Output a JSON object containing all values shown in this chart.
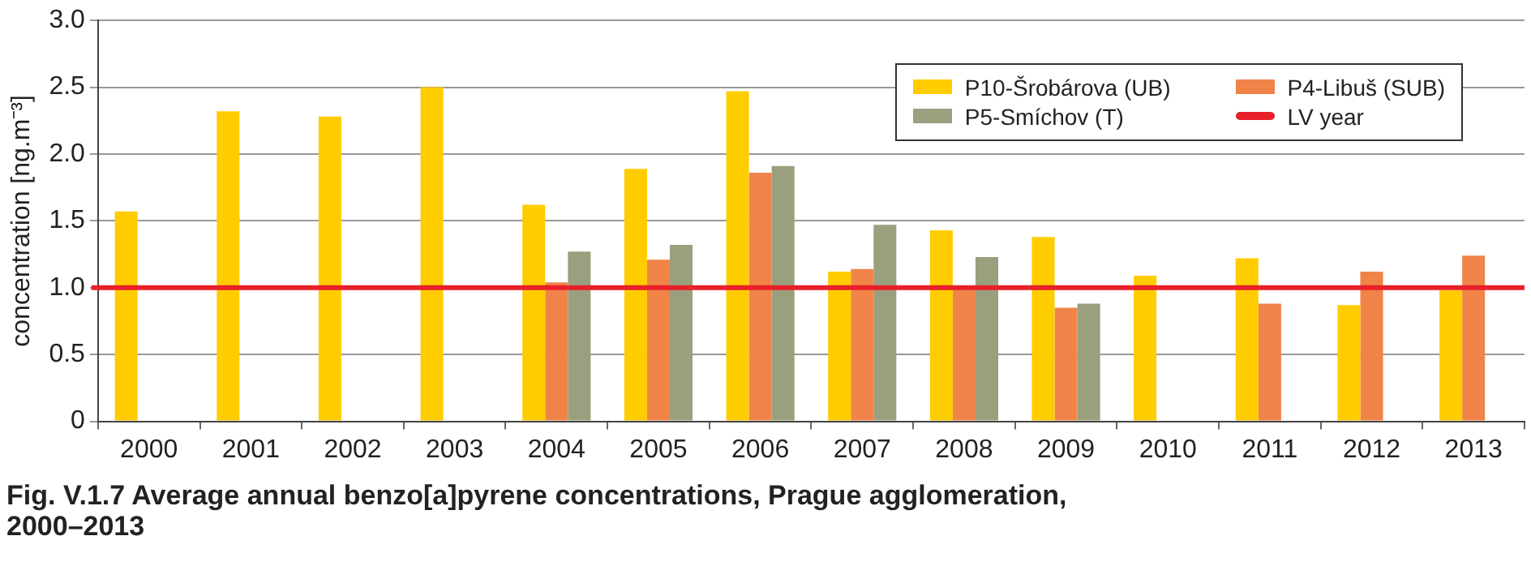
{
  "chart_data": {
    "type": "bar",
    "title": "Fig. V.1.7  Average annual benzo[a]pyrene concentrations, Prague agglomeration, 2000–2013",
    "ylabel": "concentration [ng.m⁻³]",
    "categories": [
      "2000",
      "2001",
      "2002",
      "2003",
      "2004",
      "2005",
      "2006",
      "2007",
      "2008",
      "2009",
      "2010",
      "2011",
      "2012",
      "2013"
    ],
    "series": [
      {
        "name": "P10-Šrobárova (UB)",
        "color": "#ffcc00",
        "values": [
          1.57,
          2.32,
          2.28,
          2.5,
          1.62,
          1.89,
          2.47,
          1.12,
          1.43,
          1.38,
          1.09,
          1.22,
          0.87,
          0.98
        ]
      },
      {
        "name": "P4-Libuš (SUB)",
        "color": "#f08448",
        "values": [
          null,
          null,
          null,
          null,
          1.04,
          1.21,
          1.86,
          1.14,
          1.01,
          0.85,
          null,
          0.88,
          1.12,
          1.24
        ]
      },
      {
        "name": "P5-Smíchov (T)",
        "color": "#9aa07e",
        "values": [
          null,
          null,
          null,
          null,
          1.27,
          1.32,
          1.91,
          1.47,
          1.23,
          0.88,
          null,
          null,
          null,
          null
        ]
      }
    ],
    "ref_lines": [
      {
        "axis": "y",
        "value": 1.0,
        "label": "LV year",
        "color": "#e8202a"
      }
    ],
    "ylim": [
      0,
      3.0
    ],
    "yticks": [
      0,
      0.5,
      {
        "value": 1,
        "label": "1.0"
      },
      1.5,
      {
        "value": 2,
        "label": "2.0"
      },
      2.5,
      {
        "value": 3,
        "label": "3.0"
      }
    ],
    "grid": "y",
    "legend": "top right"
  }
}
